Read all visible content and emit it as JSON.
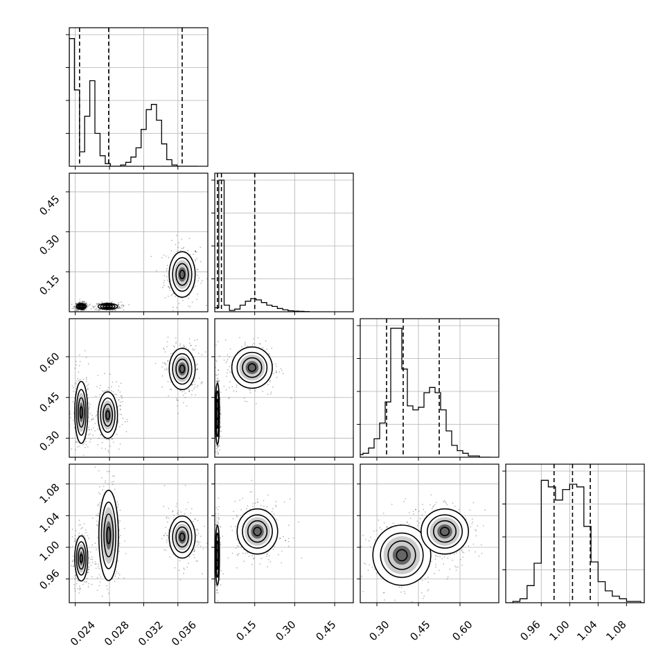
{
  "chart_data": [
    {
      "type": "histogram",
      "panel": "p1-marginal",
      "x": [
        0.023,
        0.0236,
        0.0242,
        0.0248,
        0.0254,
        0.026,
        0.0266,
        0.0272,
        0.0278,
        0.0284,
        0.029,
        0.0296,
        0.0302,
        0.0308,
        0.0314,
        0.032,
        0.0326,
        0.0332,
        0.0338,
        0.0344,
        0.035,
        0.0356,
        0.0362,
        0.0368,
        0.0374,
        0.038
      ],
      "values": [
        0.03,
        0.97,
        0.58,
        0.11,
        0.38,
        0.65,
        0.25,
        0.08,
        0.02,
        0.0,
        0.0,
        0.01,
        0.03,
        0.07,
        0.14,
        0.28,
        0.43,
        0.47,
        0.35,
        0.17,
        0.05,
        0.01,
        0.0,
        0.0,
        0.0,
        0.0
      ],
      "quantile_lines": [
        0.0245,
        0.0279,
        0.0365
      ],
      "xlim": [
        0.0233,
        0.0395
      ],
      "xticks": [
        0.024,
        0.028,
        0.032,
        0.036
      ],
      "ylim": [
        0,
        1.0
      ],
      "grid": true
    },
    {
      "type": "histogram",
      "panel": "p2-marginal",
      "x": [
        0.005,
        0.025,
        0.045,
        0.065,
        0.085,
        0.105,
        0.125,
        0.145,
        0.165,
        0.185,
        0.205,
        0.225,
        0.245,
        0.265,
        0.285,
        0.305,
        0.325,
        0.345
      ],
      "values": [
        0.03,
        1.0,
        0.05,
        0.01,
        0.02,
        0.05,
        0.08,
        0.1,
        0.09,
        0.07,
        0.05,
        0.04,
        0.025,
        0.015,
        0.008,
        0.005,
        0.003,
        0.001
      ],
      "quantile_lines": [
        0.01,
        0.025,
        0.15
      ],
      "xlim": [
        0.0,
        0.52
      ],
      "xticks": [
        0.15,
        0.3,
        0.45
      ],
      "ylim": [
        0,
        1.0
      ],
      "grid": true
    },
    {
      "type": "histogram",
      "panel": "p3-marginal",
      "x": [
        0.24,
        0.26,
        0.28,
        0.3,
        0.32,
        0.34,
        0.36,
        0.38,
        0.4,
        0.42,
        0.44,
        0.46,
        0.48,
        0.5,
        0.52,
        0.54,
        0.56,
        0.58,
        0.6,
        0.62,
        0.64,
        0.66,
        0.68,
        0.7
      ],
      "values": [
        0.02,
        0.03,
        0.07,
        0.14,
        0.26,
        0.42,
        0.98,
        0.98,
        0.67,
        0.39,
        0.36,
        0.38,
        0.49,
        0.53,
        0.49,
        0.36,
        0.2,
        0.09,
        0.05,
        0.03,
        0.01,
        0.01,
        0.0,
        0.0
      ],
      "quantile_lines": [
        0.335,
        0.395,
        0.525
      ],
      "xlim": [
        0.24,
        0.74
      ],
      "xticks": [
        0.3,
        0.45,
        0.6
      ],
      "ylim": [
        0,
        1.0
      ],
      "grid": true
    },
    {
      "type": "histogram",
      "panel": "p4-marginal",
      "x": [
        0.915,
        0.925,
        0.935,
        0.945,
        0.955,
        0.965,
        0.975,
        0.985,
        0.995,
        1.005,
        1.015,
        1.025,
        1.035,
        1.045,
        1.055,
        1.065,
        1.075,
        1.085,
        1.095,
        1.105
      ],
      "values": [
        0.0,
        0.01,
        0.03,
        0.13,
        0.3,
        0.93,
        0.88,
        0.78,
        0.86,
        0.9,
        0.88,
        0.58,
        0.31,
        0.16,
        0.09,
        0.05,
        0.03,
        0.01,
        0.01,
        0.0
      ],
      "quantile_lines": [
        0.978,
        1.004,
        1.029
      ],
      "xlim": [
        0.91,
        1.105
      ],
      "xticks": [
        0.96,
        1.0,
        1.04,
        1.08
      ],
      "ylim": [
        0,
        1.0
      ],
      "grid": true
    },
    {
      "type": "contour-scatter",
      "panel": "p1-vs-p2",
      "clusters": [
        {
          "cx": 0.0365,
          "cy": 0.14,
          "sx": 0.0008,
          "sy": 0.045
        },
        {
          "cx": 0.0247,
          "cy": 0.02,
          "sx": 0.0003,
          "sy": 0.006
        },
        {
          "cx": 0.0278,
          "cy": 0.02,
          "sx": 0.0006,
          "sy": 0.006
        }
      ],
      "xlim": [
        0.0233,
        0.0395
      ],
      "ylim": [
        0.0,
        0.52
      ],
      "yticks": [
        0.15,
        0.3,
        0.45
      ],
      "grid": true
    },
    {
      "type": "contour-scatter",
      "panel": "p1-vs-p3",
      "clusters": [
        {
          "cx": 0.0365,
          "cy": 0.555,
          "sx": 0.0008,
          "sy": 0.04
        },
        {
          "cx": 0.0247,
          "cy": 0.395,
          "sx": 0.0004,
          "sy": 0.06
        },
        {
          "cx": 0.0278,
          "cy": 0.385,
          "sx": 0.0006,
          "sy": 0.045
        }
      ],
      "xlim": [
        0.0233,
        0.0395
      ],
      "ylim": [
        0.23,
        0.74
      ],
      "yticks": [
        0.3,
        0.45,
        0.6
      ],
      "grid": true
    },
    {
      "type": "contour-scatter",
      "panel": "p2-vs-p3",
      "clusters": [
        {
          "cx": 0.14,
          "cy": 0.56,
          "sx": 0.04,
          "sy": 0.04
        },
        {
          "cx": 0.01,
          "cy": 0.39,
          "sx": 0.004,
          "sy": 0.06
        }
      ],
      "xlim": [
        0.0,
        0.52
      ],
      "ylim": [
        0.23,
        0.74
      ],
      "grid": true
    },
    {
      "type": "contour-scatter",
      "panel": "p1-vs-p4",
      "clusters": [
        {
          "cx": 0.0365,
          "cy": 1.013,
          "sx": 0.0008,
          "sy": 0.014
        },
        {
          "cx": 0.0247,
          "cy": 0.986,
          "sx": 0.0004,
          "sy": 0.015
        },
        {
          "cx": 0.0279,
          "cy": 1.015,
          "sx": 0.0006,
          "sy": 0.03
        }
      ],
      "xlim": [
        0.0233,
        0.0395
      ],
      "ylim": [
        0.93,
        1.105
      ],
      "yticks": [
        0.96,
        1.0,
        1.04,
        1.08
      ],
      "xticks": [
        0.024,
        0.028,
        0.032,
        0.036
      ],
      "grid": true
    },
    {
      "type": "contour-scatter",
      "panel": "p2-vs-p4",
      "clusters": [
        {
          "cx": 0.16,
          "cy": 1.02,
          "sx": 0.04,
          "sy": 0.015
        },
        {
          "cx": 0.01,
          "cy": 0.99,
          "sx": 0.004,
          "sy": 0.02
        }
      ],
      "xlim": [
        0.0,
        0.52
      ],
      "ylim": [
        0.93,
        1.105
      ],
      "xticks": [
        0.15,
        0.3,
        0.45
      ],
      "grid": true
    },
    {
      "type": "contour-scatter",
      "panel": "p3-vs-p4",
      "clusters": [
        {
          "cx": 0.39,
          "cy": 0.99,
          "sx": 0.055,
          "sy": 0.02
        },
        {
          "cx": 0.545,
          "cy": 1.02,
          "sx": 0.045,
          "sy": 0.015
        }
      ],
      "xlim": [
        0.24,
        0.74
      ],
      "ylim": [
        0.93,
        1.105
      ],
      "xticks": [
        0.3,
        0.45,
        0.6
      ],
      "grid": true
    }
  ],
  "tick_labels": {
    "x_col1": [
      "0.024",
      "0.028",
      "0.032",
      "0.036"
    ],
    "x_col2": [
      "0.15",
      "0.30",
      "0.45"
    ],
    "x_col3": [
      "0.30",
      "0.45",
      "0.60"
    ],
    "x_col4": [
      "0.96",
      "1.00",
      "1.04",
      "1.08"
    ],
    "y_row2": [
      "0.45",
      "0.30",
      "0.15"
    ],
    "y_row3": [
      "0.60",
      "0.45",
      "0.30"
    ],
    "y_row4": [
      "1.08",
      "1.04",
      "1.00",
      "0.96"
    ]
  }
}
